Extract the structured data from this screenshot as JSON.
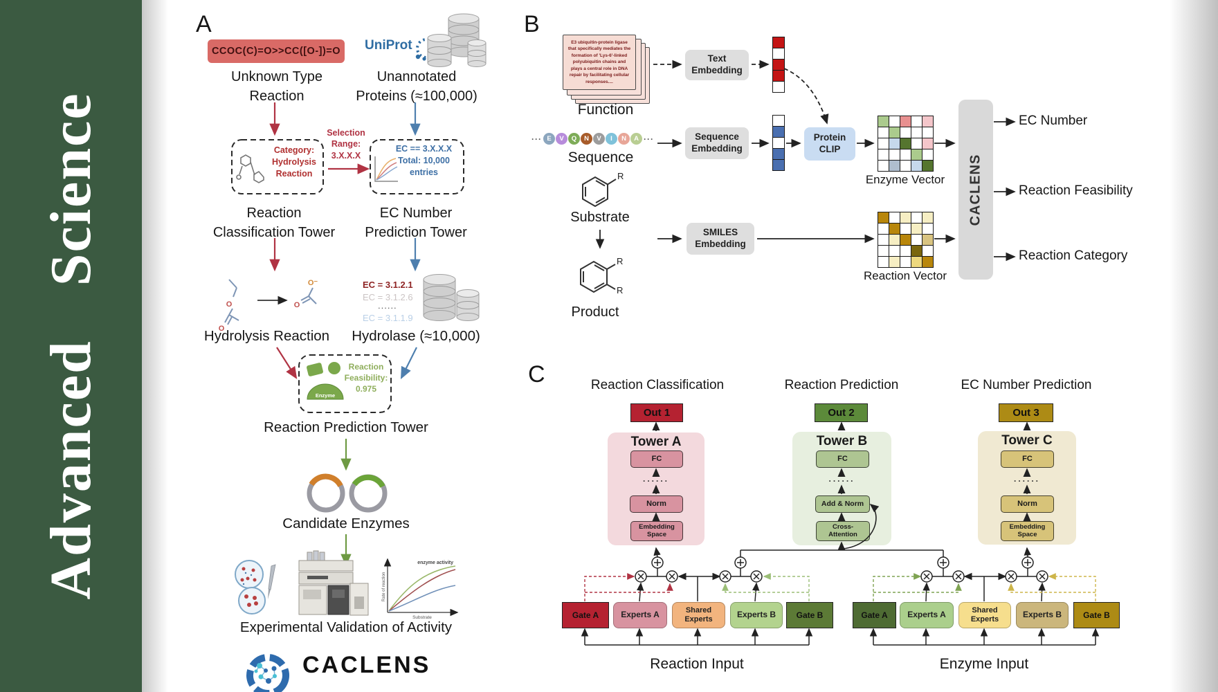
{
  "journal": {
    "title": "Advanced Science"
  },
  "colors": {
    "sidebar_green": "#3B5A41",
    "reaction_red": "#B03343",
    "protein_blue": "#4E7FAE",
    "enzyme_green": "#7BA84B",
    "smiles_box_red": "#D96A66",
    "clip_blue": "#C9DCF2",
    "out1_red": "#B52231",
    "out2_green": "#5C8A3A",
    "out3_gold": "#AD8B15",
    "towerA_pink": "#F3D9DD",
    "towerB_green": "#E7EFDF",
    "towerC_tan": "#F0E9D2",
    "shared_orange": "#F2B47E",
    "shared_yellow": "#F6DE8D"
  },
  "panelA": {
    "label": "A",
    "smiles_box": "CCOC(C)=O>>CC([O-])=O",
    "unknown_reaction": "Unknown Type\nReaction",
    "uniprot": "UniProt",
    "unannotated": "Unannotated\nProteins (≈100,000)",
    "classification_box": "Category:\nHydrolysis\nReaction",
    "selection_range": "Selection\nRange:\n3.X.X.X",
    "ec_box": "EC == 3.X.X.X\nTotal: 10,000\nentries",
    "tower_classification": "Reaction\nClassification Tower",
    "tower_ec": "EC Number\nPrediction Tower",
    "ec_list": [
      "EC = 3.1.2.1",
      "EC = 3.1.2.6",
      "......",
      "EC = 3.1.1.9"
    ],
    "hydrolysis": "Hydrolysis Reaction",
    "hydrolase": "Hydrolase (≈10,000)",
    "enzyme_icon_label": "Enzyme",
    "feasibility": "Reaction\nFeasibility:\n0.975",
    "tower_prediction": "Reaction Prediction Tower",
    "candidates": "Candidate Enzymes",
    "molecule": {
      "o": "O",
      "o_minus": "O⁻"
    },
    "plot": {
      "title": "enzyme activity",
      "ylabel": "Rate of reaction",
      "xlabel": "Substrate"
    },
    "validation": "Experimental Validation of Activity",
    "brand": "CACLENS"
  },
  "panelB": {
    "label": "B",
    "function_card": "E3 ubiquitin-protein ligase that specifically mediates the formation of 'Lys-6'-linked polyubiquitin chains and plays a central role in DNA repair by facilitating cellular responses....",
    "function": "Function",
    "text_embedding": "Text\nEmbedding",
    "sequence": "Sequence",
    "sequence_embedding": "Sequence\nEmbedding",
    "ellipsis": "···",
    "residues": [
      {
        "t": "E",
        "c": "#8CA6BE"
      },
      {
        "t": "V",
        "c": "#B78CDB"
      },
      {
        "t": "Q",
        "c": "#7EAC58"
      },
      {
        "t": "N",
        "c": "#A85C2A"
      },
      {
        "t": "V",
        "c": "#9C9C9C"
      },
      {
        "t": "I",
        "c": "#7FC2DA"
      },
      {
        "t": "N",
        "c": "#E8A698"
      },
      {
        "t": "A",
        "c": "#B9CE93"
      }
    ],
    "protein_clip": "Protein\nCLIP",
    "substrate": "Substrate",
    "product": "Product",
    "r_label": "R",
    "smiles_embedding": "SMILES\nEmbedding",
    "enzyme_vector": "Enzyme Vector",
    "reaction_vector": "Reaction Vector",
    "caclens": "CACLENS",
    "outputs": [
      "EC Number",
      "Reaction Feasibility",
      "Reaction Category"
    ],
    "text_vec": [
      "#C41414",
      "#FFFFFF",
      "#C41414",
      "#C41414",
      "#FFFFFF"
    ],
    "seq_vec": [
      "#FFFFFF",
      "#4A6FB0",
      "#FFFFFF",
      "#4A6FB0",
      "#4A6FB0"
    ],
    "enzyme_grid": [
      "#ABCB8D",
      "#FFFFFF",
      "#E89090",
      "#FFFFFF",
      "#F4C6CA",
      "#FFFFFF",
      "#ABCB8D",
      "#FFFFFF",
      "#FFFFFF",
      "#FFFFFF",
      "#FFFFFF",
      "#C6D8EC",
      "#55752F",
      "#FFFFFF",
      "#F4C6CA",
      "#FFFFFF",
      "#FFFFFF",
      "#FFFFFF",
      "#ABCB8D",
      "#FFFFFF",
      "#FFFFFF",
      "#AFBECE",
      "#FFFFFF",
      "#C6D8EC",
      "#55752F"
    ],
    "reaction_grid": [
      "#B8860B",
      "#FFFFFF",
      "#F6EEC3",
      "#FFFFFF",
      "#F6EEC3",
      "#FFFFFF",
      "#B8860B",
      "#FFFFFF",
      "#F6EEC3",
      "#FFFFFF",
      "#FFFFFF",
      "#F6EEC3",
      "#B8860B",
      "#FFFFFF",
      "#D9C481",
      "#FFFFFF",
      "#FFFFFF",
      "#FFFFFF",
      "#7A660E",
      "#FFFFFF",
      "#FFFFFF",
      "#F6EEC3",
      "#FFFFFF",
      "#EDD87E",
      "#B8860B"
    ]
  },
  "panelC": {
    "label": "C",
    "headings": [
      "Reaction Classification",
      "Reaction Prediction",
      "EC Number Prediction"
    ],
    "outs": [
      "Out 1",
      "Out 2",
      "Out 3"
    ],
    "towers": [
      {
        "title": "Tower A",
        "b1": "FC",
        "dots": "......",
        "b2": "Norm",
        "b3": "Embedding\nSpace"
      },
      {
        "title": "Tower B",
        "b1": "FC",
        "dots": "......",
        "b2": "Add & Norm",
        "b3": "Cross-\nAttention"
      },
      {
        "title": "Tower C",
        "b1": "FC",
        "dots": "......",
        "b2": "Norm",
        "b3": "Embedding\nSpace"
      }
    ],
    "moe": {
      "gateA": "Gate A",
      "expertsA": "Experts A",
      "shared": "Shared\nExperts",
      "expertsB": "Experts B",
      "gateB": "Gate B",
      "reaction_input": "Reaction Input",
      "enzyme_input": "Enzyme Input"
    }
  }
}
